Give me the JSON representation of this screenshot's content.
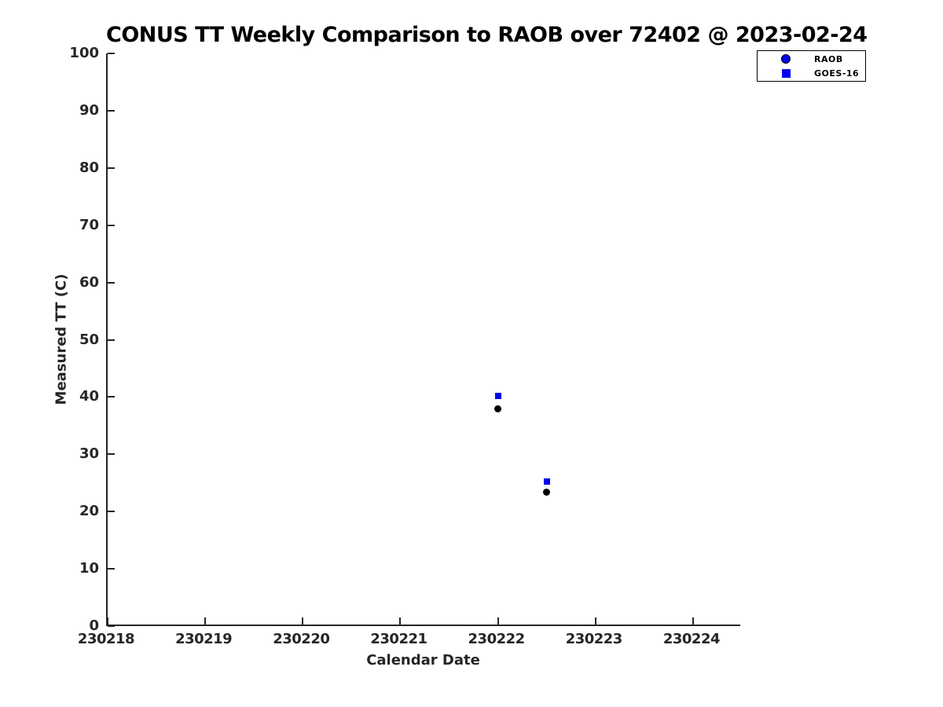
{
  "chart_data": {
    "type": "scatter",
    "title": "CONUS TT Weekly Comparison to RAOB over 72402 @ 2023-02-24",
    "xlabel": "Calendar Date",
    "ylabel": "Measured TT (C)",
    "xlim": [
      230218,
      230224.5
    ],
    "ylim": [
      0,
      100
    ],
    "xticks": [
      230218,
      230219,
      230220,
      230221,
      230222,
      230223,
      230224
    ],
    "yticks": [
      0,
      10,
      20,
      30,
      40,
      50,
      60,
      70,
      80,
      90,
      100
    ],
    "grid": false,
    "background": "#ffffff",
    "axis_color": "#262626",
    "series": [
      {
        "name": "RAOB",
        "marker": "circle",
        "color": "#000000",
        "points": [
          {
            "x": 230222.0,
            "y": 37.9
          },
          {
            "x": 230222.5,
            "y": 23.4
          }
        ]
      },
      {
        "name": "GOES-16",
        "marker": "square",
        "color": "#0000EE",
        "points": [
          {
            "x": 230222.0,
            "y": 40.2
          },
          {
            "x": 230222.5,
            "y": 25.2
          }
        ]
      }
    ],
    "legend": {
      "position": "top-right",
      "entries": [
        {
          "label": "RAOB",
          "marker": "circle",
          "marker_color": "#0000EE",
          "marker_edge": "#000000"
        },
        {
          "label": "GOES-16",
          "marker": "square",
          "marker_color": "#0000EE",
          "marker_edge": "#0000EE"
        }
      ]
    }
  }
}
